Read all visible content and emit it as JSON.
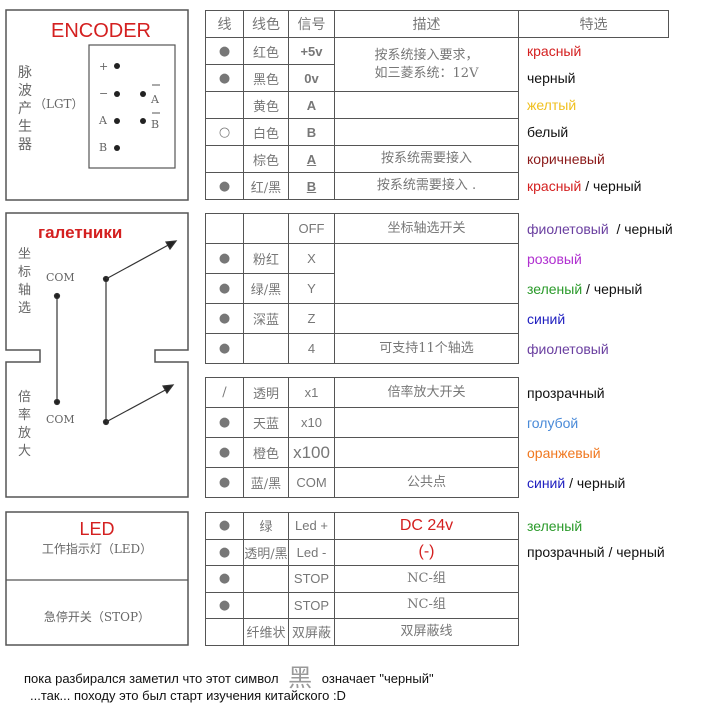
{
  "colors": {
    "red": "#d42020",
    "black": "#111111",
    "yellow": "#f0c020",
    "brown": "#8b1a1a",
    "purple": "#6a3fa0",
    "pink": "#b030d0",
    "green": "#2a9a2a",
    "blue": "#2020c0",
    "lightblue": "#4a8ad8",
    "orange": "#f07820"
  },
  "encoder_panel": {
    "title": "ENCODER",
    "label_cn": [
      "脉",
      "波",
      "产",
      "生",
      "器"
    ],
    "label_lgt": "（LGT）",
    "pins": {
      "plus": "+",
      "minus": "−",
      "a": "A",
      "b": "B",
      "a_bar": "A",
      "b_bar": "B"
    }
  },
  "switch_panel": {
    "title": "галетники",
    "axis_label": [
      "坐",
      "标",
      "轴",
      "选"
    ],
    "mult_label": [
      "倍",
      "率",
      "放",
      "大"
    ],
    "com_top": "COM",
    "com_bottom": "COM"
  },
  "led_panel": {
    "title": "LED",
    "led_label": "工作指示灯（LED）",
    "stop_label": "急停开关（STOP）"
  },
  "table_header": {
    "wire": "线",
    "color": "线色",
    "signal": "信号",
    "desc": "描述",
    "option": "特选"
  },
  "tables": [
    {
      "rows": [
        {
          "dot": "●",
          "color_cn": "红色",
          "signal": "+5v",
          "desc": "按系统接入要求，\n如三菱系统：12V",
          "ru": [
            {
              "t": "красный",
              "c": "red"
            }
          ]
        },
        {
          "dot": "●",
          "color_cn": "黑色",
          "signal": "0v",
          "ru": [
            {
              "t": "черный",
              "c": "black"
            }
          ]
        },
        {
          "dot": "",
          "color_cn": "黄色",
          "signal": "A",
          "desc": "",
          "ru": [
            {
              "t": "желтый",
              "c": "yellow"
            }
          ]
        },
        {
          "dot": "○",
          "color_cn": "白色",
          "signal": "B",
          "desc": "",
          "ru": [
            {
              "t": "белый",
              "c": "black"
            }
          ]
        },
        {
          "dot": "",
          "color_cn": "棕色",
          "signal": "A",
          "desc": "按系统需要接入",
          "ru": [
            {
              "t": "коричневый",
              "c": "brown"
            }
          ]
        },
        {
          "dot": "●",
          "color_cn": "红/黑",
          "signal": "B",
          "desc": "按系统需要接入 .",
          "ru": [
            {
              "t": "красный",
              "c": "red"
            },
            {
              "t": " / черный",
              "c": "black"
            }
          ]
        }
      ]
    },
    {
      "rows": [
        {
          "dot": "",
          "color_cn": "",
          "signal": "OFF",
          "desc": "坐标轴选开关",
          "ru": [
            {
              "t": "фиолетовый",
              "c": "purple"
            },
            {
              "t": "  / черный",
              "c": "black"
            }
          ]
        },
        {
          "dot": "●",
          "color_cn": "粉红",
          "signal": "X",
          "desc": "",
          "ru": [
            {
              "t": "розовый",
              "c": "pink"
            }
          ]
        },
        {
          "dot": "●",
          "color_cn": "绿/黑",
          "signal": "Y",
          "ru": [
            {
              "t": "зеленый",
              "c": "green"
            },
            {
              "t": " / черный",
              "c": "black"
            }
          ]
        },
        {
          "dot": "●",
          "color_cn": "深蓝",
          "signal": "Z",
          "desc": "",
          "ru": [
            {
              "t": "синий",
              "c": "blue"
            }
          ]
        },
        {
          "dot": "●",
          "color_cn": "",
          "signal": "4",
          "desc": "可支持11个轴选",
          "ru": [
            {
              "t": "фиолетовый",
              "c": "purple"
            }
          ]
        }
      ]
    },
    {
      "rows": [
        {
          "dot": "/",
          "color_cn": "透明",
          "signal": "x1",
          "desc": "倍率放大开关",
          "ru": [
            {
              "t": "прозрачный",
              "c": "black"
            }
          ]
        },
        {
          "dot": "●",
          "color_cn": "天蓝",
          "signal": "x10",
          "desc": "",
          "ru": [
            {
              "t": "голубой",
              "c": "lightblue"
            }
          ]
        },
        {
          "dot": "●",
          "color_cn": "橙色",
          "signal": "x100",
          "desc": "",
          "ru": [
            {
              "t": "оранжевый",
              "c": "orange"
            }
          ]
        },
        {
          "dot": "●",
          "color_cn": "蓝/黑",
          "signal": "COM",
          "desc": "公共点",
          "ru": [
            {
              "t": "синий",
              "c": "blue"
            },
            {
              "t": " / черный",
              "c": "black"
            }
          ]
        }
      ]
    },
    {
      "rows": [
        {
          "dot": "●",
          "color_cn": "绿",
          "signal": "Led +",
          "desc": "DC 24v",
          "ru": [
            {
              "t": "зеленый",
              "c": "green"
            }
          ]
        },
        {
          "dot": "●",
          "color_cn": "透明/黑",
          "signal": "Led -",
          "desc": "(-)",
          "ru": [
            {
              "t": "прозрачный / черный",
              "c": "black"
            }
          ]
        },
        {
          "dot": "●",
          "color_cn": "",
          "signal": "STOP",
          "desc": "NC-组",
          "ru": []
        },
        {
          "dot": "●",
          "color_cn": "",
          "signal": "STOP",
          "desc": "NC-组",
          "ru": []
        },
        {
          "dot": "",
          "color_cn": "纤维状",
          "signal": "双屏蔽",
          "desc": "双屏蔽线",
          "ru": []
        }
      ]
    }
  ],
  "notes": {
    "line1_before": "пока разбирался заметил что этот символ",
    "symbol": "黑",
    "line1_after": "означает \"черный\"",
    "line2": "...так... походу это был старт изучения китайского :D"
  }
}
